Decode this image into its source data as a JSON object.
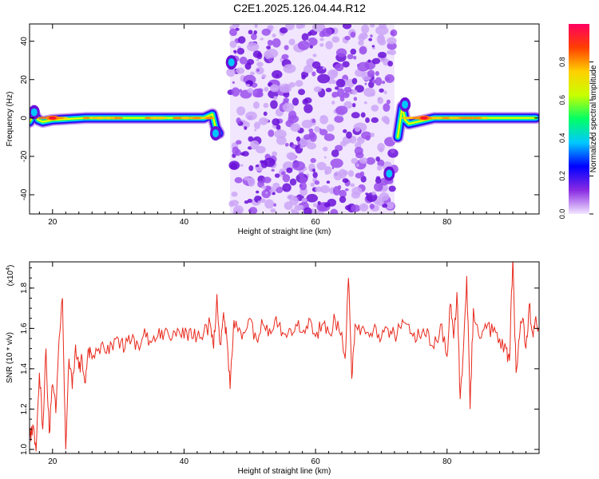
{
  "title": "C2E1.2025.126.04.44.R12",
  "colorbar": {
    "label": "Normalized spectral amplitude",
    "ticks": [
      "0.0",
      "0.2",
      "0.4",
      "0.6",
      "0.8"
    ],
    "range": [
      0,
      1
    ],
    "colors": [
      "#f2e6ff",
      "#8a2be2",
      "#0000ff",
      "#00c8ff",
      "#00ff66",
      "#c8ff00",
      "#ffd000",
      "#ff4000",
      "#ff0060"
    ]
  },
  "chart_data": [
    {
      "type": "heatmap",
      "xlabel": "Height of straight line (km)",
      "ylabel": "Frequency (Hz)",
      "xlim": [
        16.5,
        94
      ],
      "ylim": [
        -50,
        49
      ],
      "xticks": [
        20,
        40,
        60,
        80
      ],
      "yticks": [
        -40,
        -20,
        0,
        20,
        40
      ],
      "ridge_segments": [
        {
          "x": [
            16.5,
            17.2,
            17.8,
            18.5,
            20,
            25,
            30,
            35,
            40,
            43,
            44.3,
            44.8,
            45.3
          ],
          "y": [
            -2,
            2,
            -1,
            -2,
            -1,
            0,
            0,
            0,
            0,
            0,
            2,
            -5,
            -8
          ]
        },
        {
          "x": [
            72.5,
            73.2,
            73.6,
            74.2,
            75.5,
            78,
            82,
            86,
            90,
            93.5
          ],
          "y": [
            -10,
            6,
            -1,
            -3,
            -2,
            0,
            0,
            0,
            0,
            0
          ]
        }
      ],
      "hot_spots": [
        {
          "x": 20,
          "y": 0,
          "amp": 1.0
        },
        {
          "x": 76.5,
          "y": 0,
          "amp": 1.0
        },
        {
          "x": 17.2,
          "y": 3,
          "amp": 0.3
        },
        {
          "x": 73.6,
          "y": 7,
          "amp": 0.3
        },
        {
          "x": 47.2,
          "y": 29,
          "amp": 0.3
        },
        {
          "x": 44.8,
          "y": -8,
          "amp": 0.3
        },
        {
          "x": 71.2,
          "y": -29,
          "amp": 0.3
        }
      ],
      "noise_band": {
        "x_range": [
          47,
          72
        ],
        "max_amp": 0.2
      }
    },
    {
      "type": "line",
      "xlabel": "Height of straight line (km)",
      "ylabel": "SNR (10 * v/v)",
      "y_multiplier_label": "(x10",
      "y_multiplier_exp": "4",
      "xlim": [
        16.5,
        94
      ],
      "ylim": [
        0.98,
        1.93
      ],
      "xticks": [
        20,
        40,
        60,
        80
      ],
      "yticks": [
        1.0,
        1.2,
        1.4,
        1.6,
        1.8
      ],
      "ytick_labels": [
        "1.0",
        "1.2",
        "1.4",
        "1.6",
        "1.8"
      ],
      "series": [
        {
          "color": "#e8291c",
          "x": [
            16.5,
            17.0,
            17.5,
            18.0,
            18.5,
            19.0,
            19.5,
            20.0,
            20.5,
            21.0,
            21.5,
            22.0,
            22.5,
            23.0,
            23.5,
            24.0,
            24.5,
            25.0,
            25.5,
            26.0,
            27.0,
            28.0,
            29.0,
            30.0,
            31.0,
            32.0,
            33.0,
            34.0,
            35.0,
            36.0,
            37.0,
            38.0,
            39.0,
            40.0,
            41.0,
            42.0,
            43.0,
            44.0,
            44.5,
            45.0,
            45.5,
            46.0,
            46.5,
            47.0,
            47.5,
            48.0,
            49.0,
            50.0,
            51.0,
            52.0,
            53.0,
            54.0,
            55.0,
            56.0,
            57.0,
            58.0,
            59.0,
            60.0,
            61.0,
            62.0,
            63.0,
            64.0,
            64.5,
            65.0,
            65.5,
            66.0,
            67.0,
            68.0,
            69.0,
            70.0,
            71.0,
            72.0,
            73.0,
            74.0,
            75.0,
            76.0,
            77.0,
            78.0,
            79.0,
            80.0,
            80.5,
            81.0,
            81.5,
            82.0,
            82.5,
            83.0,
            83.5,
            84.0,
            85.0,
            86.0,
            87.0,
            88.0,
            89.0,
            89.5,
            90.0,
            90.5,
            91.0,
            91.5,
            92.0,
            92.5,
            93.0,
            93.5,
            94.0
          ],
          "y": [
            1.06,
            1.12,
            0.99,
            1.38,
            1.1,
            1.5,
            1.08,
            1.32,
            1.18,
            1.55,
            1.75,
            1.0,
            1.45,
            1.3,
            1.52,
            1.4,
            1.45,
            1.33,
            1.5,
            1.45,
            1.5,
            1.48,
            1.52,
            1.55,
            1.5,
            1.54,
            1.52,
            1.6,
            1.53,
            1.56,
            1.58,
            1.54,
            1.6,
            1.55,
            1.6,
            1.56,
            1.58,
            1.62,
            1.5,
            1.77,
            1.52,
            1.68,
            1.55,
            1.3,
            1.6,
            1.62,
            1.58,
            1.65,
            1.55,
            1.62,
            1.6,
            1.66,
            1.58,
            1.6,
            1.62,
            1.58,
            1.65,
            1.56,
            1.62,
            1.58,
            1.64,
            1.58,
            1.45,
            1.85,
            1.35,
            1.62,
            1.6,
            1.58,
            1.62,
            1.55,
            1.6,
            1.57,
            1.6,
            1.62,
            1.58,
            1.55,
            1.6,
            1.5,
            1.62,
            1.46,
            1.72,
            1.55,
            1.78,
            1.25,
            1.5,
            1.86,
            1.2,
            1.7,
            1.55,
            1.6,
            1.58,
            1.55,
            1.5,
            1.44,
            1.95,
            1.38,
            1.55,
            1.65,
            1.5,
            1.72,
            1.58,
            1.66,
            1.6
          ]
        }
      ]
    }
  ]
}
